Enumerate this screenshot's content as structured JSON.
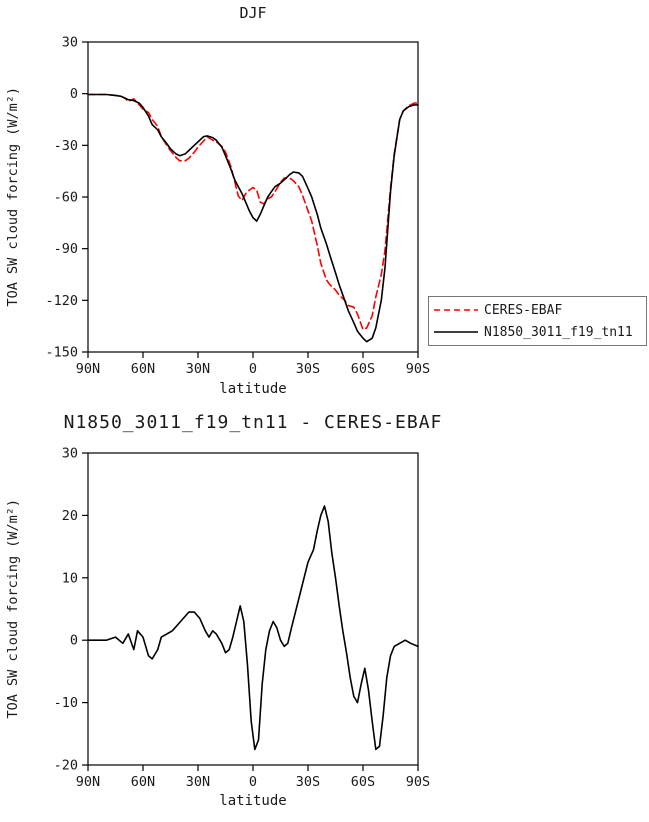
{
  "figure": {
    "background": "#ffffff",
    "axis_color": "#000000"
  },
  "chart_data": [
    {
      "type": "line",
      "title": "DJF",
      "xlabel": "latitude",
      "ylabel": "TOA SW cloud forcing (W/m²)",
      "xlim": [
        90,
        -90
      ],
      "ylim": [
        -150,
        30
      ],
      "grid": false,
      "legend_position": "right",
      "x_tick_values": [
        90,
        60,
        30,
        0,
        -30,
        -60,
        -90
      ],
      "x_tick_labels": [
        "90N",
        "60N",
        "30N",
        "0",
        "30S",
        "60S",
        "90S"
      ],
      "y_ticks": [
        30,
        0,
        -30,
        -60,
        -90,
        -120,
        -150
      ],
      "legend": [
        {
          "name": "CERES-EBAF",
          "color": "#ff0000",
          "dash": true
        },
        {
          "name": "N1850_3011_f19_tn11",
          "color": "#000000",
          "dash": false
        }
      ],
      "x": [
        90,
        85,
        80,
        75,
        72,
        70,
        68,
        65,
        62,
        60,
        57,
        55,
        52,
        50,
        47,
        45,
        42,
        40,
        37,
        35,
        32,
        30,
        27,
        25,
        22,
        20,
        17,
        15,
        12,
        10,
        8,
        6,
        4,
        2,
        0,
        -2,
        -4,
        -6,
        -8,
        -10,
        -12,
        -15,
        -17,
        -20,
        -22,
        -25,
        -27,
        -30,
        -32,
        -35,
        -37,
        -40,
        -42,
        -45,
        -47,
        -50,
        -52,
        -55,
        -57,
        -60,
        -62,
        -65,
        -67,
        -70,
        -72,
        -75,
        -77,
        -80,
        -82,
        -85,
        -88,
        -90
      ],
      "series": [
        {
          "name": "CERES-EBAF",
          "color": "#ff0000",
          "dash": true,
          "values": [
            -0.5,
            -0.5,
            -0.5,
            -1,
            -1.5,
            -2.5,
            -4.5,
            -3,
            -6.5,
            -9,
            -11,
            -15,
            -19,
            -25,
            -30,
            -33,
            -37,
            -39,
            -39,
            -37.5,
            -34,
            -31,
            -27.5,
            -25,
            -27,
            -28,
            -30.5,
            -34,
            -42.5,
            -51,
            -59.5,
            -62,
            -58,
            -56,
            -54.5,
            -56,
            -63,
            -64,
            -61,
            -60,
            -57,
            -51.5,
            -49,
            -49,
            -50.5,
            -54,
            -59,
            -68,
            -74,
            -88,
            -98.5,
            -108,
            -111,
            -114,
            -117,
            -120,
            -123,
            -124,
            -128,
            -137,
            -136,
            -129,
            -118,
            -105,
            -91,
            -55,
            -35,
            -15,
            -10,
            -7,
            -5.5,
            -5.5
          ]
        },
        {
          "name": "N1850_3011_f19_tn11",
          "color": "#000000",
          "dash": false,
          "values": [
            -0.5,
            -0.5,
            -0.5,
            -1,
            -1.5,
            -2.5,
            -3.5,
            -4,
            -5.5,
            -8,
            -13,
            -18,
            -21,
            -25,
            -29,
            -32,
            -35,
            -36,
            -35,
            -33,
            -30,
            -28,
            -25,
            -24.5,
            -25.5,
            -27,
            -31,
            -36,
            -44,
            -50,
            -54,
            -58,
            -63,
            -68,
            -72,
            -74,
            -70,
            -65,
            -60,
            -57,
            -54,
            -52,
            -50,
            -47,
            -45.5,
            -46,
            -48,
            -55,
            -60,
            -70,
            -78,
            -87,
            -94,
            -104,
            -111,
            -120,
            -126,
            -133,
            -138,
            -142,
            -144,
            -142,
            -136,
            -120,
            -101,
            -57,
            -36,
            -15,
            -10,
            -7.5,
            -6.5,
            -6.5
          ]
        }
      ]
    },
    {
      "type": "line",
      "title": "N1850_3011_f19_tn11 - CERES-EBAF",
      "xlabel": "latitude",
      "ylabel": "TOA SW cloud forcing (W/m²)",
      "xlim": [
        90,
        -90
      ],
      "ylim": [
        -20,
        30
      ],
      "grid": false,
      "x_tick_values": [
        90,
        60,
        30,
        0,
        -30,
        -60,
        -90
      ],
      "x_tick_labels": [
        "90N",
        "60N",
        "30N",
        "0",
        "30S",
        "60S",
        "90S"
      ],
      "y_ticks": [
        30,
        20,
        10,
        0,
        -10,
        -20
      ],
      "x": [
        90,
        85,
        80,
        75,
        71,
        68,
        65,
        63,
        60,
        57,
        55,
        52,
        50,
        47,
        44,
        41,
        38,
        35,
        32,
        29,
        26,
        24,
        22,
        20,
        17,
        15,
        13,
        11,
        9,
        7,
        5,
        3,
        1,
        -1,
        -3,
        -5,
        -7,
        -9,
        -11,
        -13,
        -15,
        -17,
        -19,
        -21,
        -24,
        -27,
        -30,
        -33,
        -35,
        -37,
        -39,
        -41,
        -43,
        -45,
        -47,
        -49,
        -51,
        -53,
        -55,
        -57,
        -59,
        -61,
        -63,
        -65,
        -67,
        -69,
        -71,
        -73,
        -75,
        -77,
        -80,
        -83,
        -86,
        -90
      ],
      "series": [
        {
          "name": "N1850_3011_f19_tn11 - CERES-EBAF",
          "color": "#000000",
          "dash": false,
          "values": [
            0,
            0,
            0,
            0.5,
            -0.5,
            1,
            -1.5,
            1.5,
            0.5,
            -2.5,
            -3,
            -1.5,
            0.5,
            1,
            1.5,
            2.5,
            3.5,
            4.5,
            4.5,
            3.5,
            1.5,
            0.5,
            1.5,
            1,
            -0.5,
            -2,
            -1.5,
            0.5,
            3,
            5.5,
            3,
            -4,
            -13,
            -17.5,
            -16,
            -7,
            -1.5,
            1.5,
            3,
            2,
            0,
            -1,
            -0.5,
            2,
            5.5,
            9,
            12.5,
            14.5,
            17.5,
            20,
            21.5,
            19,
            14,
            10,
            5.5,
            1.5,
            -2,
            -6,
            -9,
            -10,
            -7,
            -4.5,
            -8,
            -13,
            -17.5,
            -17,
            -12,
            -6,
            -2.5,
            -1,
            -0.5,
            0,
            -0.5,
            -1
          ]
        }
      ]
    }
  ]
}
